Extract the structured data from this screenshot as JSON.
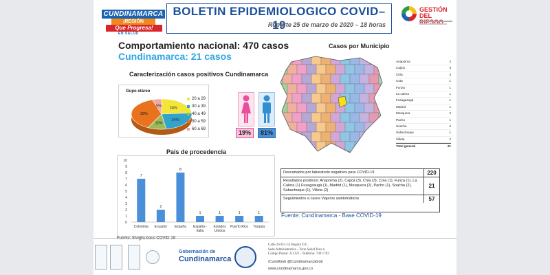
{
  "header": {
    "logo": {
      "line1": "CUNDINAMARCA",
      "line2": "¡REGIÓN",
      "line3": "Que Progresa!",
      "line4": "EN SALUD"
    },
    "title": "BOLETIN EPIDEMIOLOGICO COVID–19",
    "subtitle": "Reporte 25 de marzo de 2020 – 18 horas",
    "gestion_line1": "GESTIÓN",
    "gestion_line2": "DEL RIESGO"
  },
  "main": {
    "national": "Comportamiento nacional: 470 casos",
    "cundinamarca": "Cundinamarca: 21 casos",
    "characterization_title": "Caracterización casos positivos Cundinamarca",
    "municipalities_title": "Casos por Municipio",
    "age_group_title": "Gupo etáreo",
    "gender": {
      "female_pct": "19%",
      "male_pct": "81%",
      "female_color": "#e94f9b",
      "male_color": "#2f8fd0"
    },
    "origin_title": "Pais de procedencia",
    "source1": "Fuente: Sivigila base COVID-19",
    "source2": "Fuente: Cundinamarca - Base COVID-19"
  },
  "chart_data": [
    {
      "type": "pie",
      "title": "Gupo etáreo",
      "categories": [
        "20 a 29",
        "30 a 39",
        "40 a 49",
        "50 a 59",
        "60 a 69"
      ],
      "values": [
        24,
        24,
        10,
        38,
        5
      ],
      "labels": [
        "24%",
        "24%",
        "10%",
        "38%",
        "5%"
      ],
      "colors": [
        "#f2e639",
        "#33a3c9",
        "#9bbb59",
        "#e8731c",
        "#f2a6a0"
      ]
    },
    {
      "type": "bar",
      "title": "Pais de procedencia",
      "categories": [
        "Colombia",
        "Ecuador",
        "España",
        "España - Italia",
        "Estados Unidos",
        "Puerto Rico",
        "Turquia"
      ],
      "values": [
        7,
        2,
        8,
        1,
        1,
        1,
        1
      ],
      "ylim": [
        0,
        10
      ],
      "yticks": [
        "0",
        "1",
        "2",
        "3",
        "4",
        "5",
        "6",
        "7",
        "8",
        "9",
        "10"
      ],
      "color": "#4a90d9"
    }
  ],
  "municipalities": {
    "rows": [
      {
        "name": "Anapoima",
        "count": "2"
      },
      {
        "name": "Cajicá",
        "count": "3"
      },
      {
        "name": "Chía",
        "count": "3"
      },
      {
        "name": "Cota",
        "count": "1"
      },
      {
        "name": "Funza",
        "count": "1"
      },
      {
        "name": "La calera",
        "count": "1"
      },
      {
        "name": "Fusagasugá",
        "count": "1"
      },
      {
        "name": "Madrid",
        "count": "1"
      },
      {
        "name": "Mosquera",
        "count": "2"
      },
      {
        "name": "Pacho",
        "count": "1"
      },
      {
        "name": "Soacha",
        "count": "2"
      },
      {
        "name": "Subachoque",
        "count": "1"
      },
      {
        "name": "Villeta",
        "count": "2"
      }
    ],
    "total_label": "Total general",
    "total_value": "21"
  },
  "summary": [
    {
      "label": "Descartados por laboratorio negativos para COVID-19",
      "value": "220"
    },
    {
      "label": "Resultados positivos: Anapoima (2), Cajicá (3), Chía (3), Cota (1), Funza (1), La Calera (1) Fusagasugá (1), Madrid (1), Mosquera (2), Pacho (1), Soacha (2), Subachoque (1), Villeta (2)",
      "value": "21"
    },
    {
      "label": "Seguimientos a casos Viajeros asintomáticos",
      "value": "57"
    }
  ],
  "footer": {
    "gob_line1": "Gobernación de",
    "gob_line2": "Cundinamarca",
    "address": [
      "Calle 26 #51-53 Bogotá D.C.",
      "Sede Administrativa - Torre Salud Piso 4.",
      "Código Postal: 111321 - Teléfono: 749 1783"
    ],
    "social": "/CundiGob  @CundinamarcaGob",
    "web": "www.cundinamarca.gov.co"
  }
}
